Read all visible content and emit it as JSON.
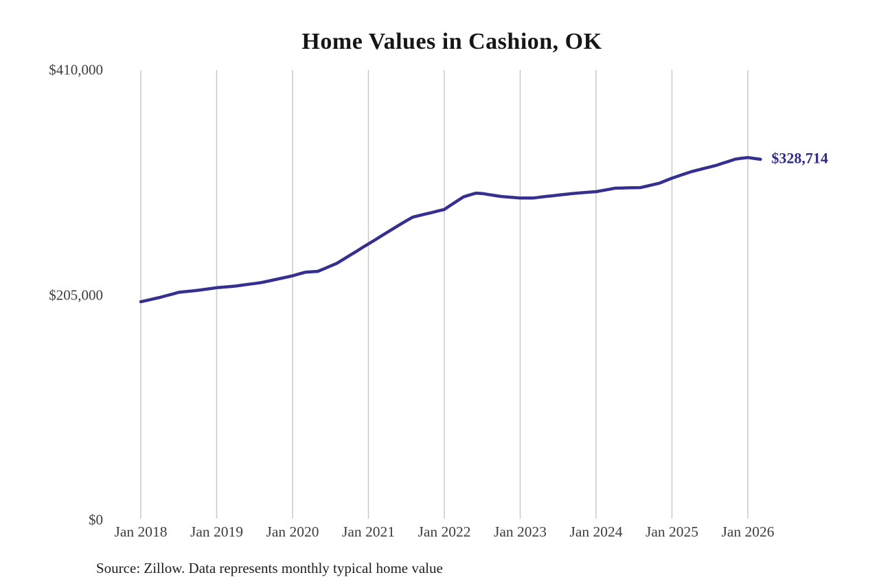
{
  "chart_data": {
    "type": "line",
    "title": "Home Values in Cashion, OK",
    "source": "Source: Zillow. Data represents monthly typical home value",
    "x_start": "Jan 2018",
    "x_end": "Mar 2026",
    "frequency": "monthly",
    "values": [
      198900,
      200200,
      201500,
      202800,
      204400,
      205900,
      207500,
      208100,
      208700,
      209300,
      210100,
      210900,
      211700,
      212200,
      212700,
      213200,
      214000,
      214800,
      215500,
      216300,
      217500,
      218800,
      220000,
      221300,
      222500,
      224200,
      225800,
      226200,
      226600,
      229000,
      231500,
      233900,
      237400,
      241000,
      244500,
      248100,
      251600,
      255100,
      258700,
      262200,
      265800,
      269300,
      272700,
      276000,
      277400,
      278800,
      280200,
      281600,
      283000,
      286800,
      290600,
      294400,
      296200,
      297900,
      297500,
      296600,
      295700,
      294800,
      294300,
      293900,
      293400,
      293400,
      293400,
      294100,
      294800,
      295400,
      296100,
      296700,
      297300,
      297900,
      298300,
      298800,
      299200,
      300300,
      301300,
      302400,
      302500,
      302700,
      302800,
      302900,
      304200,
      305600,
      306900,
      309200,
      311500,
      313400,
      315400,
      317300,
      318800,
      320300,
      321700,
      323200,
      325100,
      326900,
      328800,
      329600,
      330300,
      329500,
      328714
    ],
    "x_tick_labels": [
      "Jan 2018",
      "Jan 2019",
      "Jan 2020",
      "Jan 2021",
      "Jan 2022",
      "Jan 2023",
      "Jan 2024",
      "Jan 2025",
      "Jan 2026"
    ],
    "y_ticks": [
      {
        "label": "$410,000",
        "value": 410000
      },
      {
        "label": "$205,000",
        "value": 205000
      },
      {
        "label": "$0",
        "value": 0
      }
    ],
    "ylim": [
      0,
      410000
    ],
    "end_label": "$328,714",
    "end_value": 328714,
    "line_color": "#35308f",
    "end_label_color": "#2d2a8c",
    "grid_color": "#c9c9c9",
    "grid": "vertical-only",
    "legend": "none"
  }
}
